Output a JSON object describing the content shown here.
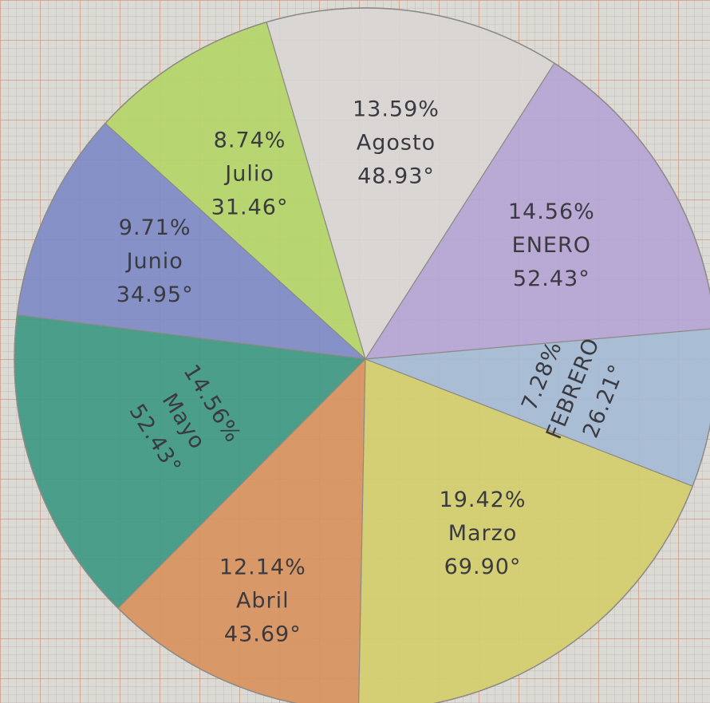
{
  "chart_data": {
    "type": "pie",
    "title": "",
    "slices": [
      {
        "label": "ENERO",
        "percent_text": "14.56%",
        "degrees_text": "52.43°",
        "degrees": 52.43,
        "color": "#b7a6d6"
      },
      {
        "label": "Agosto",
        "percent_text": "13.59%",
        "degrees_text": "48.93°",
        "degrees": 48.93,
        "color": "#d9d6d4"
      },
      {
        "label": "Julio",
        "percent_text": "8.74%",
        "degrees_text": "31.46°",
        "degrees": 31.46,
        "color": "#b5d66b"
      },
      {
        "label": "Junio",
        "percent_text": "9.71%",
        "degrees_text": "34.95°",
        "degrees": 34.95,
        "color": "#7f8cc6"
      },
      {
        "label": "Mayo",
        "percent_text": "14.56%",
        "degrees_text": "52.43°",
        "degrees": 52.43,
        "color": "#3f9a85"
      },
      {
        "label": "Abril",
        "percent_text": "12.14%",
        "degrees_text": "43.69°",
        "degrees": 43.69,
        "color": "#d9945f"
      },
      {
        "label": "Marzo",
        "percent_text": "19.42%",
        "degrees_text": "69.90°",
        "degrees": 69.9,
        "color": "#d4cf6e"
      },
      {
        "label": "FEBRERO",
        "percent_text": "7.28%",
        "degrees_text": "26.21°",
        "degrees": 26.21,
        "color": "#a6bbd6"
      }
    ]
  }
}
